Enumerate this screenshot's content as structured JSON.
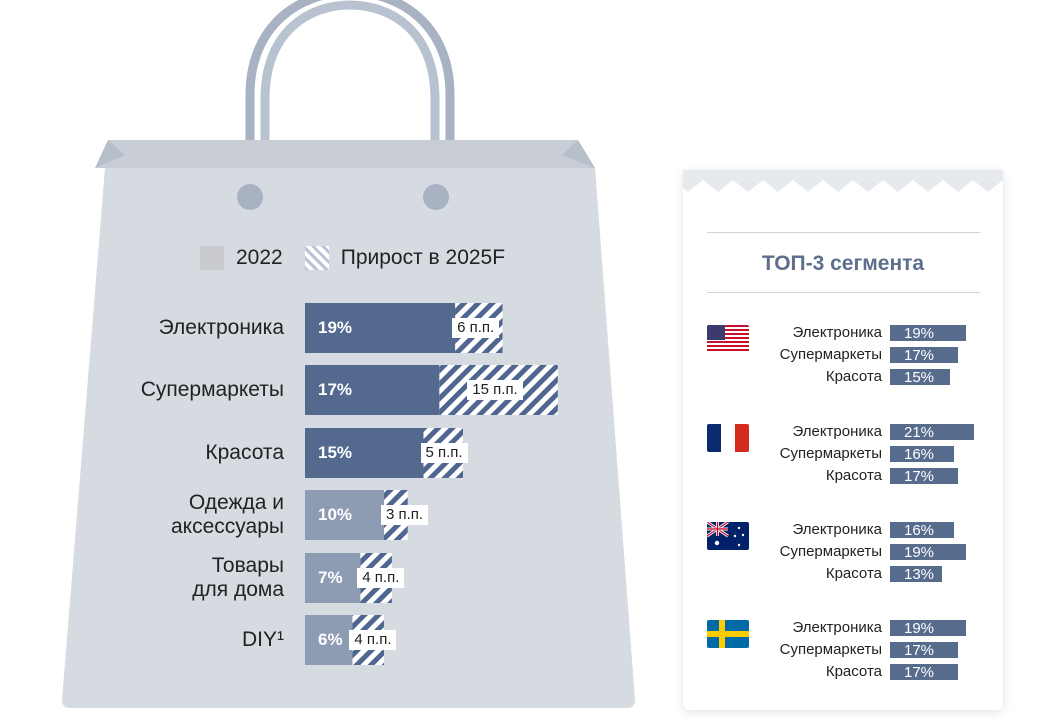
{
  "colors": {
    "bag_fill": "#d6dae1",
    "bag_rim": "#c8cdd6",
    "handle": "#a8b2c3",
    "bar_dark": "#536a8e",
    "bar_light": "#8d9bb3",
    "hatch": "#4f6690",
    "small_bar": "#576b8d"
  },
  "legend": {
    "base_label": "2022",
    "growth_label": "Прирост в 2025F"
  },
  "chart_data": {
    "type": "bar",
    "orientation": "horizontal",
    "stacked": true,
    "categories": [
      "Электроника",
      "Супермаркеты",
      "Красота",
      "Одежда и\nаксессуары",
      "Товары\nдля дома",
      "DIY¹"
    ],
    "series": [
      {
        "name": "2022",
        "values": [
          19,
          17,
          15,
          10,
          7,
          6
        ]
      },
      {
        "name": "Прирост в 2025F",
        "values": [
          6,
          15,
          5,
          3,
          4,
          4
        ]
      }
    ],
    "base_labels": [
      "19%",
      "17%",
      "15%",
      "10%",
      "7%",
      "6%"
    ],
    "growth_labels": [
      "6 п.п.",
      "15 п.п.",
      "5 п.п.",
      "3 п.п.",
      "4 п.п.",
      "4 п.п."
    ],
    "base_color": [
      "dark",
      "dark",
      "dark",
      "light",
      "light",
      "light"
    ]
  },
  "top3": {
    "title": "ТОП-3 сегмента",
    "countries": [
      {
        "flag_icon": "usa-flag-icon",
        "segments": [
          {
            "label": "Электроника",
            "value": 19,
            "text": "19%"
          },
          {
            "label": "Супермаркеты",
            "value": 17,
            "text": "17%"
          },
          {
            "label": "Красота",
            "value": 15,
            "text": "15%"
          }
        ]
      },
      {
        "flag_icon": "france-flag-icon",
        "segments": [
          {
            "label": "Электроника",
            "value": 21,
            "text": "21%"
          },
          {
            "label": "Супермаркеты",
            "value": 16,
            "text": "16%"
          },
          {
            "label": "Красота",
            "value": 17,
            "text": "17%"
          }
        ]
      },
      {
        "flag_icon": "australia-flag-icon",
        "segments": [
          {
            "label": "Электроника",
            "value": 16,
            "text": "16%"
          },
          {
            "label": "Супермаркеты",
            "value": 19,
            "text": "19%"
          },
          {
            "label": "Красота",
            "value": 13,
            "text": "13%"
          }
        ]
      },
      {
        "flag_icon": "sweden-flag-icon",
        "segments": [
          {
            "label": "Электроника",
            "value": 19,
            "text": "19%"
          },
          {
            "label": "Супермаркеты",
            "value": 17,
            "text": "17%"
          },
          {
            "label": "Красота",
            "value": 17,
            "text": "17%"
          }
        ]
      }
    ]
  }
}
